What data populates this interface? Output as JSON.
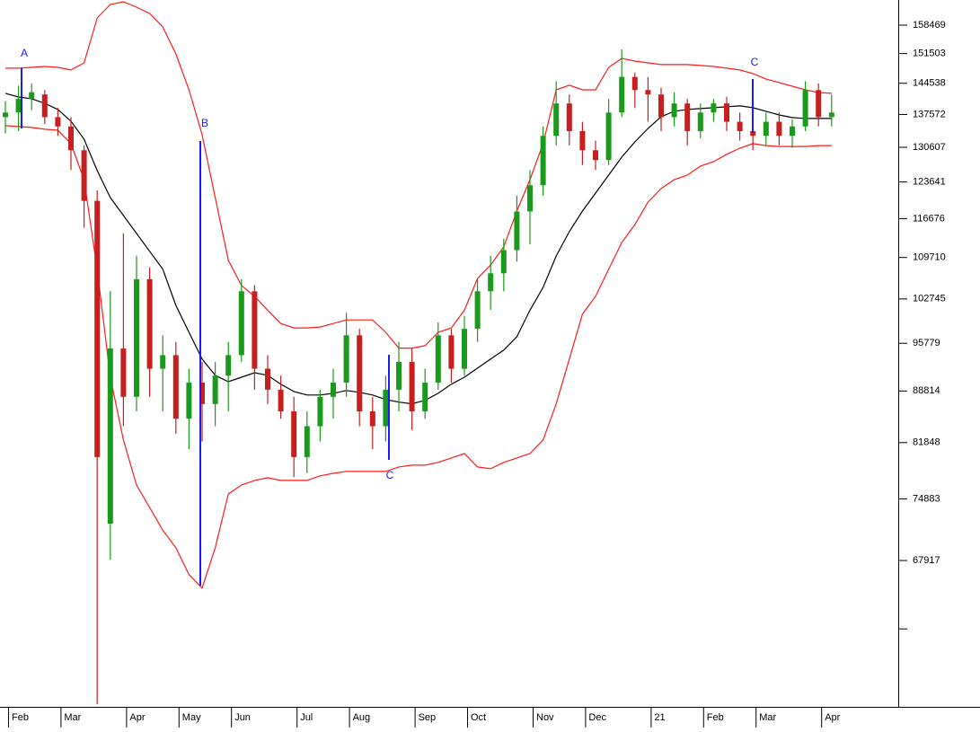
{
  "chart_data": {
    "type": "candlestick",
    "log_y": true,
    "y_axis_side": "right",
    "up_color": "#1a9a1a",
    "down_color": "#c81e1e",
    "categories": [
      "Feb",
      null,
      null,
      null,
      "Mar",
      null,
      null,
      null,
      null,
      "Apr",
      null,
      null,
      null,
      "May",
      null,
      null,
      null,
      "Jun",
      null,
      null,
      null,
      null,
      "Jul",
      null,
      null,
      null,
      "Aug",
      null,
      null,
      null,
      null,
      "Sep",
      null,
      null,
      null,
      "Oct",
      null,
      null,
      null,
      null,
      "Nov",
      null,
      null,
      null,
      "Dec",
      null,
      null,
      null,
      null,
      "21",
      null,
      null,
      null,
      "Feb",
      null,
      null,
      null,
      "Mar",
      null,
      null,
      null,
      null,
      "Apr",
      null
    ],
    "open": [
      137000,
      138000,
      141000,
      142000,
      137000,
      135000,
      130000,
      120000,
      72000,
      95000,
      88000,
      106000,
      92000,
      94000,
      85000,
      90000,
      87000,
      91000,
      94000,
      104000,
      92000,
      89000,
      86000,
      80000,
      84000,
      88000,
      90000,
      97000,
      86000,
      84000,
      89000,
      93000,
      86000,
      90000,
      97000,
      92000,
      98000,
      104000,
      107000,
      111000,
      118000,
      123000,
      133000,
      140000,
      134000,
      130000,
      128000,
      138000,
      146000,
      143000,
      142000,
      137000,
      140000,
      134000,
      138000,
      140000,
      136000,
      134000,
      133000,
      136000,
      133000,
      135000,
      143000,
      137000
    ],
    "high": [
      140500,
      144000,
      144500,
      143000,
      139000,
      137000,
      131000,
      122000,
      104000,
      114000,
      110000,
      108000,
      97000,
      96000,
      92000,
      93000,
      93000,
      96000,
      106000,
      105000,
      94000,
      91000,
      88000,
      86000,
      89000,
      92000,
      100500,
      98000,
      88000,
      91000,
      96000,
      95000,
      92000,
      99000,
      98000,
      100000,
      106000,
      110000,
      113000,
      121000,
      126000,
      135000,
      145000,
      142000,
      136000,
      132000,
      141000,
      152500,
      147000,
      146000,
      143500,
      142500,
      141000,
      140000,
      141000,
      141500,
      138000,
      137500,
      138000,
      138000,
      136500,
      145000,
      144500,
      142000
    ],
    "low": [
      133500,
      134000,
      138500,
      135500,
      133000,
      126000,
      115000,
      54100,
      68000,
      84000,
      86000,
      88000,
      86000,
      83000,
      81000,
      82000,
      84000,
      86000,
      93000,
      89000,
      87000,
      85000,
      77500,
      78000,
      82000,
      85000,
      88000,
      84000,
      81000,
      82000,
      86000,
      83500,
      85000,
      89000,
      90000,
      91000,
      96000,
      101000,
      104000,
      109000,
      112000,
      121000,
      131000,
      131000,
      127000,
      126000,
      127000,
      137000,
      139000,
      136000,
      134000,
      135000,
      131000,
      132500,
      136000,
      134000,
      132000,
      130000,
      131000,
      131000,
      130500,
      134000,
      135000,
      135000
    ],
    "close": [
      138000,
      141000,
      142500,
      137000,
      135000,
      130000,
      120000,
      80000,
      95000,
      88000,
      106000,
      92000,
      94000,
      85000,
      90000,
      87000,
      91000,
      94000,
      104000,
      92000,
      89000,
      86000,
      80000,
      84000,
      88000,
      90000,
      97000,
      86000,
      84000,
      89000,
      93000,
      86000,
      90000,
      97000,
      92000,
      98000,
      104000,
      107000,
      111000,
      118000,
      123000,
      133000,
      140000,
      134000,
      130000,
      128000,
      138000,
      146000,
      143000,
      142000,
      137000,
      140000,
      134000,
      138000,
      140000,
      136000,
      134000,
      133000,
      136000,
      133000,
      135000,
      143000,
      137000,
      138000
    ],
    "overlays": [
      {
        "color": "#ff1a1a",
        "values": [
          148030,
          148030,
          148230,
          148440,
          148230,
          147610,
          149280,
          160280,
          163730,
          164440,
          163030,
          161430,
          158020,
          151420,
          143050,
          133240,
          120610,
          109230,
          104970,
          103160,
          100930,
          98820,
          98140,
          98140,
          98280,
          98820,
          99390,
          99390,
          99390,
          97460,
          95050,
          95050,
          95410,
          97460,
          98140,
          100930,
          106120,
          108420,
          111560,
          118070,
          124100,
          131370,
          143050,
          144100,
          143050,
          143050,
          148230,
          150350,
          149710,
          149280,
          148870,
          148870,
          148870,
          148660,
          148440,
          148030,
          147610,
          146770,
          145500,
          144700,
          143870,
          143050,
          142450,
          142260
        ]
      },
      {
        "color": "#000000",
        "values": [
          142260,
          141430,
          141050,
          140030,
          138660,
          136130,
          132300,
          125890,
          120610,
          117250,
          113970,
          110790,
          107700,
          101700,
          97460,
          93420,
          91040,
          90130,
          90770,
          91420,
          91040,
          89770,
          88740,
          88250,
          88250,
          88490,
          88880,
          88630,
          88250,
          87630,
          87270,
          87030,
          87520,
          88490,
          89770,
          90770,
          92090,
          93420,
          94750,
          96780,
          100930,
          104640,
          109980,
          114290,
          118070,
          121480,
          124980,
          128600,
          131730,
          134570,
          137090,
          138270,
          138660,
          138870,
          139060,
          139260,
          139450,
          139060,
          138270,
          137470,
          136910,
          136710,
          136710,
          136710
        ]
      },
      {
        "color": "#ff1a1a",
        "values": [
          135160,
          134970,
          134780,
          134400,
          134200,
          131370,
          124100,
          107700,
          90770,
          82200,
          76540,
          73850,
          71260,
          69300,
          66420,
          65020,
          69300,
          75460,
          76540,
          77090,
          77420,
          77090,
          77090,
          77090,
          77650,
          77970,
          78200,
          78200,
          78200,
          78200,
          78760,
          78980,
          78980,
          79330,
          79880,
          80440,
          78760,
          78540,
          79330,
          79880,
          80440,
          82200,
          87030,
          93420,
          100300,
          103160,
          107700,
          112350,
          115590,
          119770,
          122350,
          124100,
          124980,
          126780,
          127680,
          129170,
          130430,
          131370,
          130970,
          130780,
          130780,
          130780,
          130970,
          130970
        ]
      }
    ],
    "annotations": [
      "A",
      "B",
      "C",
      "C"
    ],
    "ylim": [
      54030,
      164900
    ],
    "yticks": [
      158469,
      151503,
      144538,
      137572,
      130607,
      123641,
      116676,
      109710,
      102745,
      95779,
      88814,
      81848,
      74883,
      67917,
      {
        "value": 60951,
        "label": null
      }
    ]
  }
}
